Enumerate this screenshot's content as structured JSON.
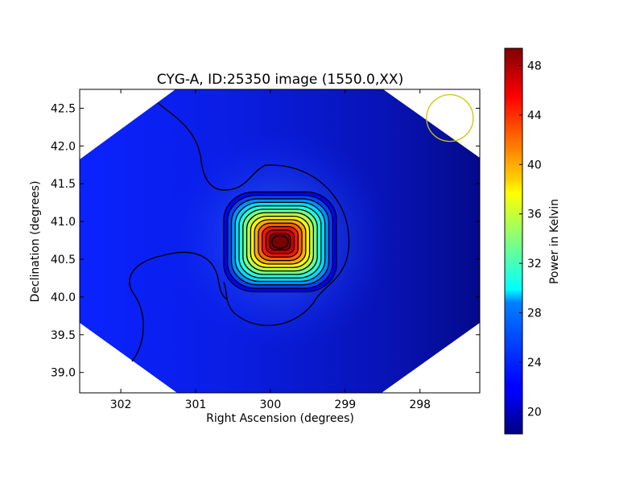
{
  "chart_data": {
    "type": "heatmap",
    "title": "CYG-A, ID:25350 image (1550.0,XX)",
    "xlabel": "Right Ascension (degrees)",
    "ylabel": "Declination (degrees)",
    "xlim": [
      302.55,
      297.2
    ],
    "ylim": [
      38.73,
      42.75
    ],
    "x_reversed": true,
    "x_ticks": [
      302,
      301,
      300,
      299,
      298
    ],
    "x_tick_labels": [
      "302",
      "301",
      "300",
      "299",
      "298"
    ],
    "y_ticks": [
      39.0,
      39.5,
      40.0,
      40.5,
      41.0,
      41.5,
      42.0,
      42.5
    ],
    "y_tick_labels": [
      "39.0",
      "39.5",
      "40.0",
      "40.5",
      "41.0",
      "41.5",
      "42.0",
      "42.5"
    ],
    "colormap": "jet",
    "colorbar": {
      "label": "Power in Kelvin",
      "range": [
        18.2,
        49.4
      ],
      "ticks": [
        20,
        24,
        28,
        32,
        36,
        40,
        44,
        48
      ],
      "tick_labels": [
        "20",
        "24",
        "28",
        "32",
        "36",
        "40",
        "44",
        "48"
      ]
    },
    "source": {
      "ra": 299.87,
      "dec": 40.73,
      "peak_kelvin": 49.4
    },
    "background_kelvin_range": [
      19.0,
      22.0
    ],
    "contour_color": "#000000",
    "beam_circle": {
      "ra": 297.6,
      "dec": 42.37,
      "color": "#c8c800"
    },
    "image_footprint": "diamond"
  }
}
